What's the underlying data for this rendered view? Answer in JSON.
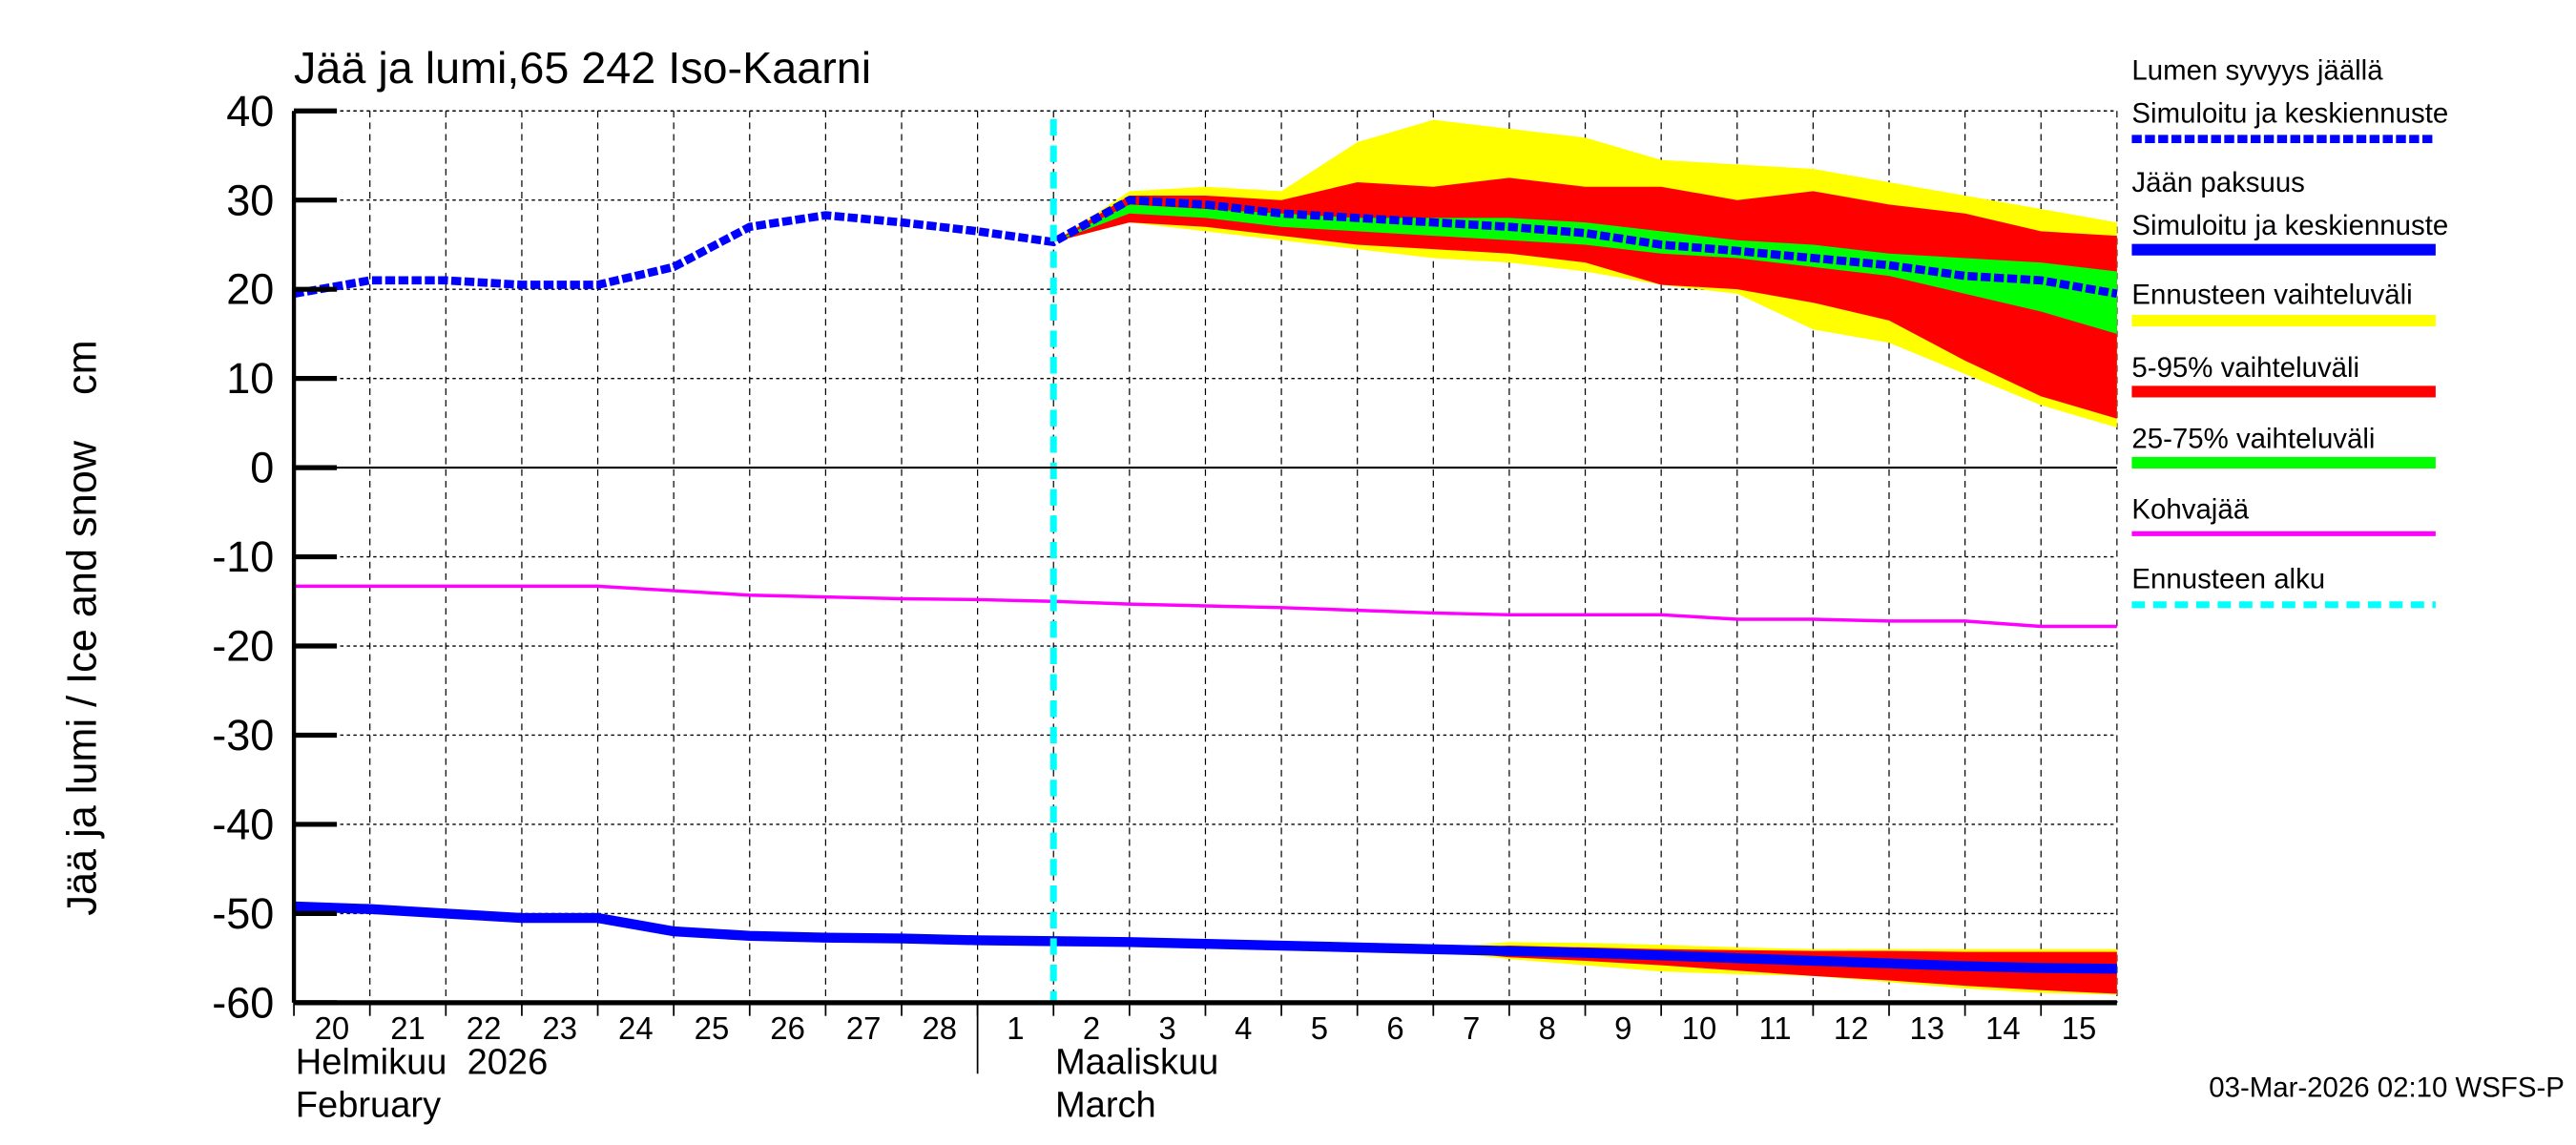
{
  "chart_data": {
    "type": "area",
    "title": "Jää ja lumi,65 242 Iso-Kaarni",
    "ylabel": "Jää ja lumi / Ice and snow    cm",
    "ylim": [
      -60,
      40
    ],
    "yticks": [
      40,
      30,
      20,
      10,
      0,
      -10,
      -20,
      -30,
      -40,
      -50,
      -60
    ],
    "grid": true,
    "legend_placement": "right",
    "x_day_labels": [
      "20",
      "21",
      "22",
      "23",
      "24",
      "25",
      "26",
      "27",
      "28",
      "1",
      "2",
      "3",
      "4",
      "5",
      "6",
      "7",
      "8",
      "9",
      "10",
      "11",
      "12",
      "13",
      "14",
      "15"
    ],
    "month_labels": [
      {
        "fi": "Helmikuu  2026",
        "en": "February"
      },
      {
        "fi": "Maaliskuu",
        "en": "March"
      }
    ],
    "x_dates": [
      "2026-02-20",
      "2026-02-21",
      "2026-02-22",
      "2026-02-23",
      "2026-02-24",
      "2026-02-25",
      "2026-02-26",
      "2026-02-27",
      "2026-02-28",
      "2026-03-01",
      "2026-03-02",
      "2026-03-03",
      "2026-03-04",
      "2026-03-05",
      "2026-03-06",
      "2026-03-07",
      "2026-03-08",
      "2026-03-09",
      "2026-03-10",
      "2026-03-11",
      "2026-03-12",
      "2026-03-13",
      "2026-03-14",
      "2026-03-15",
      "2026-03-16"
    ],
    "forecast_start": "2026-03-02",
    "forecast_dates": [
      "2026-03-02",
      "2026-03-03",
      "2026-03-04",
      "2026-03-05",
      "2026-03-06",
      "2026-03-07",
      "2026-03-08",
      "2026-03-09",
      "2026-03-10",
      "2026-03-11",
      "2026-03-12",
      "2026-03-13",
      "2026-03-14",
      "2026-03-15",
      "2026-03-16"
    ],
    "snow": {
      "median": [
        19.5,
        21,
        21,
        20.5,
        20.5,
        22.5,
        27,
        28.3,
        27.5,
        26.5,
        25.3,
        30,
        29.5,
        28.5,
        28,
        27.5,
        27,
        26.3,
        25,
        24.3,
        23.5,
        22.7,
        21.5,
        21,
        19.5
      ],
      "range_upper": [
        25.3,
        31,
        31.5,
        31,
        36.5,
        39,
        38,
        37,
        34.5,
        34,
        33.5,
        32,
        30.5,
        29,
        27.5
      ],
      "range_lower": [
        25.3,
        27.5,
        26.5,
        25.5,
        24.5,
        23.5,
        23,
        22,
        20.5,
        19.5,
        15.5,
        14,
        10.5,
        7,
        4.5
      ],
      "p95": [
        25.3,
        30.5,
        30.5,
        30,
        32,
        31.5,
        32.5,
        31.5,
        31.5,
        30,
        31,
        29.5,
        28.5,
        26.5,
        26
      ],
      "p5": [
        25.3,
        27.5,
        27,
        26,
        25,
        24.5,
        24,
        23,
        20.5,
        20,
        18.5,
        16.5,
        12,
        8,
        5.5
      ],
      "p75": [
        25.3,
        29.5,
        29,
        28.5,
        28,
        28,
        28,
        27.5,
        26.5,
        25.5,
        25,
        24,
        23.5,
        23,
        22
      ],
      "p25": [
        25.3,
        28.5,
        28,
        27,
        26.5,
        26,
        25.5,
        25,
        24,
        23.5,
        22.5,
        21.5,
        19.5,
        17.5,
        15
      ]
    },
    "ice": {
      "median": [
        -49.2,
        -49.5,
        -50,
        -50.5,
        -50.5,
        -52,
        -52.5,
        -52.7,
        -52.8,
        -53,
        -53.1,
        -53.2,
        -53.4,
        -53.6,
        -53.8,
        -54,
        -54.2,
        -54.4,
        -54.7,
        -55,
        -55.3,
        -55.6,
        -55.9,
        -56.1,
        -56.2
      ],
      "range_upper": [
        -53.1,
        -53.2,
        -53.4,
        -53.6,
        -53.8,
        -53.9,
        -53.2,
        -53.3,
        -53.5,
        -53.8,
        -54,
        -54,
        -54,
        -54,
        -54
      ],
      "range_lower": [
        -53.1,
        -53.2,
        -53.4,
        -53.6,
        -53.8,
        -54.2,
        -55.1,
        -55.8,
        -56.5,
        -56.8,
        -57,
        -57.7,
        -58.4,
        -58.9,
        -59.1
      ],
      "p95": [
        -53.1,
        -53.2,
        -53.4,
        -53.6,
        -53.8,
        -54,
        -53.6,
        -53.8,
        -54,
        -54.1,
        -54.2,
        -54.2,
        -54.3,
        -54.3,
        -54.3
      ],
      "p5": [
        -53.1,
        -53.2,
        -53.4,
        -53.6,
        -53.8,
        -54.1,
        -54.9,
        -55.3,
        -55.8,
        -56.4,
        -57,
        -57.5,
        -58.1,
        -58.6,
        -59
      ],
      "p75": [
        -53.1,
        -53.2,
        -53.4,
        -53.6,
        -53.8,
        -54,
        -54.2,
        -54.4,
        -54.7,
        -55,
        -55.3,
        -55.5,
        -55.8,
        -55.9,
        -56
      ],
      "p25": [
        -53.1,
        -53.2,
        -53.4,
        -53.6,
        -53.8,
        -54,
        -54.3,
        -54.6,
        -54.9,
        -55.3,
        -55.6,
        -56,
        -56.3,
        -56.5,
        -56.7
      ]
    },
    "slush_ice": [
      -13.3,
      -13.3,
      -13.3,
      -13.3,
      -13.3,
      -13.8,
      -14.3,
      -14.5,
      -14.7,
      -14.8,
      -15,
      -15.3,
      -15.5,
      -15.7,
      -16,
      -16.3,
      -16.5,
      -16.5,
      -16.5,
      -17,
      -17,
      -17.2,
      -17.2,
      -17.8,
      -17.8
    ]
  },
  "legend": {
    "snow_title": "Lumen syvyys jäällä",
    "snow_series": "Simuloitu ja keskiennuste",
    "ice_title": "Jään paksuus",
    "ice_series": "Simuloitu ja keskiennuste",
    "range": "Ennusteen vaihteluväli",
    "p5_95": "5-95% vaihteluväli",
    "p25_75": "25-75% vaihteluväli",
    "slush": "Kohvajää",
    "forecast_start": "Ennusteen alku"
  },
  "colors": {
    "snow": "#0000ff",
    "ice": "#0000ff",
    "range": "#ffff00",
    "p5_95": "#ff0000",
    "p25_75": "#00ff00",
    "slush": "#ff00ff",
    "forecast_start": "#00ffff"
  },
  "footer": "03-Mar-2026 02:10 WSFS-P"
}
